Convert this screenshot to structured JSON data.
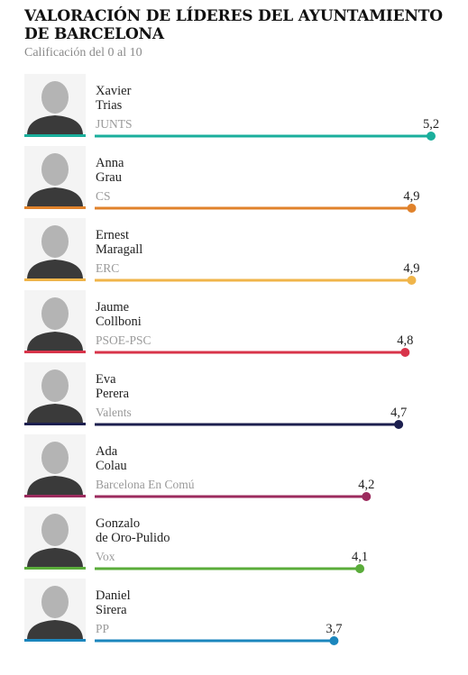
{
  "title": "VALORACIÓN DE LÍDERES DEL AYUNTAMIENTO DE BARCELONA",
  "subtitle": "Calificación del 0 al 10",
  "chart_data": {
    "type": "bar",
    "title": "VALORACIÓN DE LÍDERES DEL AYUNTAMIENTO DE BARCELONA",
    "subtitle": "Calificación del 0 al 10",
    "xlim": [
      0,
      5.2
    ],
    "grid": false,
    "items": [
      {
        "name": [
          "Xavier",
          "Trias"
        ],
        "party": "JUNTS",
        "value": 5.2,
        "label": "5,2",
        "color": "#1aaf9c"
      },
      {
        "name": [
          "Anna",
          "Grau"
        ],
        "party": "CS",
        "value": 4.9,
        "label": "4,9",
        "color": "#e0822b"
      },
      {
        "name": [
          "Ernest",
          "Maragall"
        ],
        "party": "ERC",
        "value": 4.9,
        "label": "4,9",
        "color": "#f0b54a"
      },
      {
        "name": [
          "Jaume",
          "Collboni"
        ],
        "party": "PSOE-PSC",
        "value": 4.8,
        "label": "4,8",
        "color": "#d8344a"
      },
      {
        "name": [
          "Eva",
          "Perera"
        ],
        "party": "Valents",
        "value": 4.7,
        "label": "4,7",
        "color": "#1c1f4f"
      },
      {
        "name": [
          "Ada",
          "Colau"
        ],
        "party": "Barcelona En Comú",
        "value": 4.2,
        "label": "4,2",
        "color": "#9c2b5e"
      },
      {
        "name": [
          "Gonzalo",
          "de Oro-Pulido"
        ],
        "party": "Vox",
        "value": 4.1,
        "label": "4,1",
        "color": "#5aac3a"
      },
      {
        "name": [
          "Daniel",
          "Sirera"
        ],
        "party": "PP",
        "value": 3.7,
        "label": "3,7",
        "color": "#1b86bd"
      }
    ]
  }
}
